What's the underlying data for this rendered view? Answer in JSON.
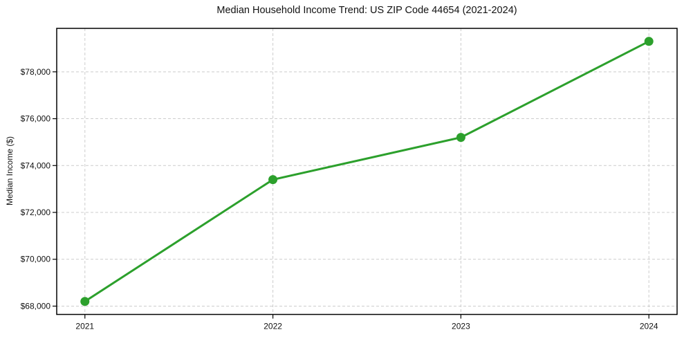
{
  "chart_data": {
    "type": "line",
    "title": "Median Household Income Trend: US ZIP Code 44654 (2021-2024)",
    "xlabel": "",
    "ylabel": "Median Income ($)",
    "x": [
      2021,
      2022,
      2023,
      2024
    ],
    "values": [
      68200,
      73400,
      75200,
      79300
    ],
    "xlim": [
      2020.85,
      2024.15
    ],
    "ylim": [
      67645,
      79855
    ],
    "xticks": [
      2021,
      2022,
      2023,
      2024
    ],
    "xtick_labels": [
      "2021",
      "2022",
      "2023",
      "2024"
    ],
    "yticks": [
      68000,
      70000,
      72000,
      74000,
      76000,
      78000
    ],
    "ytick_labels": [
      "$68,000",
      "$70,000",
      "$72,000",
      "$74,000",
      "$76,000",
      "$78,000"
    ],
    "grid": true,
    "legend": "none",
    "line_color": "#2ca02c",
    "marker_color": "#2ca02c",
    "grid_color": "#cccccc",
    "spine_color": "#000000",
    "background_color": "#ffffff"
  }
}
